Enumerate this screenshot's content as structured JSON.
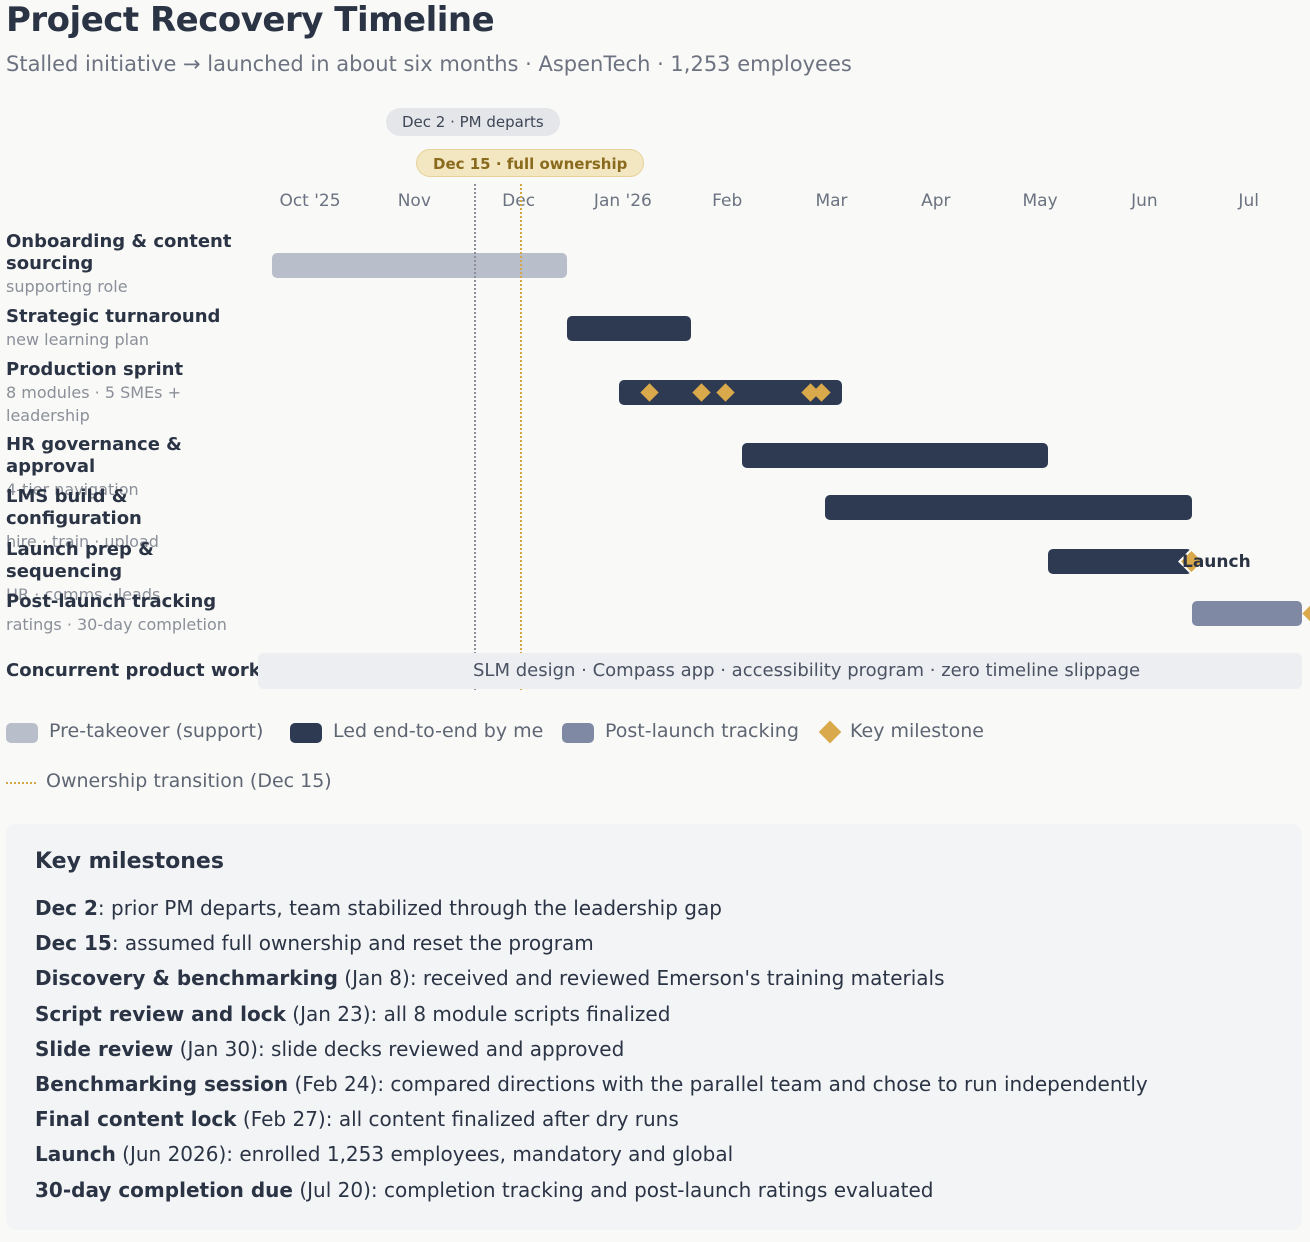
{
  "header": {
    "title": "Project Recovery Timeline",
    "subtitle": "Stalled initiative → launched in about six months · AspenTech · 1,253 employees"
  },
  "annotations": {
    "pm_departs": "Dec 2 · PM departs",
    "full_ownership": "Dec 15 · full ownership"
  },
  "colors": {
    "support": "#b9bfca",
    "led": "#2d3a52",
    "post": "#7f89a3",
    "milestone": "#d9a94b",
    "transition": "#d4a545"
  },
  "chart_data": {
    "type": "gantt",
    "x_ticks": [
      "Oct '25",
      "Nov",
      "Dec",
      "Jan '26",
      "Feb",
      "Mar",
      "Apr",
      "May",
      "Jun",
      "Jul"
    ],
    "x_range": [
      "2025-09-20",
      "2026-07-31"
    ],
    "markers": [
      {
        "date": "2025-12-02",
        "label": "Dec 2 · PM departs",
        "style": "gray-dotted"
      },
      {
        "date": "2025-12-15",
        "label": "Dec 15 · full ownership",
        "style": "gold-dotted"
      }
    ],
    "tasks": [
      {
        "name": "Onboarding & content sourcing",
        "sub": "supporting role",
        "start": "2025-09-20",
        "end": "2025-12-15",
        "kind": "support",
        "milestones": []
      },
      {
        "name": "Strategic turnaround",
        "sub": "new learning plan",
        "start": "2025-12-15",
        "end": "2026-01-20",
        "kind": "led",
        "milestones": []
      },
      {
        "name": "Production sprint",
        "sub": "8 modules · 5 SMEs + leadership",
        "start": "2025-12-30",
        "end": "2026-03-05",
        "kind": "led",
        "milestones": [
          "2026-01-08",
          "2026-01-23",
          "2026-01-30",
          "2026-02-24",
          "2026-02-27"
        ]
      },
      {
        "name": "HR governance & approval",
        "sub": "4-tier navigation",
        "start": "2026-02-04",
        "end": "2026-05-04",
        "kind": "led",
        "milestones": []
      },
      {
        "name": "LMS build & configuration",
        "sub": "hire · train · upload",
        "start": "2026-02-28",
        "end": "2026-06-15",
        "kind": "led",
        "milestones": []
      },
      {
        "name": "Launch prep & sequencing",
        "sub": "HR · comms · leads",
        "start": "2026-05-04",
        "end": "2026-06-15",
        "kind": "led",
        "milestones": [
          "2026-06-15"
        ],
        "milestone_label": "Launch"
      },
      {
        "name": "Post-launch tracking",
        "sub": "ratings · 30-day completion",
        "start": "2026-06-15",
        "end": "2026-07-31",
        "kind": "post",
        "milestones": [
          "2026-07-20"
        ]
      }
    ],
    "concurrent": {
      "label": "Concurrent product work",
      "text": "SLM design · Compass app · accessibility program · zero timeline slippage"
    },
    "legend": {
      "support": "Pre-takeover (support)",
      "led": "Led end-to-end by me",
      "post": "Post-launch tracking",
      "milestone": "Key milestone",
      "transition": "Ownership transition (Dec 15)"
    }
  },
  "milestones_panel": {
    "title": "Key milestones",
    "items": [
      {
        "bold": "Dec 2",
        "paren": "",
        "text": ": prior PM departs, team stabilized through the leadership gap"
      },
      {
        "bold": "Dec 15",
        "paren": "",
        "text": ": assumed full ownership and reset the program"
      },
      {
        "bold": "Discovery & benchmarking",
        "paren": " (Jan 8)",
        "text": ": received and reviewed Emerson's training materials"
      },
      {
        "bold": "Script review and lock",
        "paren": " (Jan 23)",
        "text": ": all 8 module scripts finalized"
      },
      {
        "bold": "Slide review",
        "paren": " (Jan 30)",
        "text": ": slide decks reviewed and approved"
      },
      {
        "bold": "Benchmarking session",
        "paren": " (Feb 24)",
        "text": ": compared directions with the parallel team and chose to run independently"
      },
      {
        "bold": "Final content lock",
        "paren": " (Feb 27)",
        "text": ": all content finalized after dry runs"
      },
      {
        "bold": "Launch",
        "paren": " (Jun 2026)",
        "text": ": enrolled 1,253 employees, mandatory and global"
      },
      {
        "bold": "30-day completion due",
        "paren": " (Jul 20)",
        "text": ": completion tracking and post-launch ratings evaluated"
      }
    ]
  }
}
